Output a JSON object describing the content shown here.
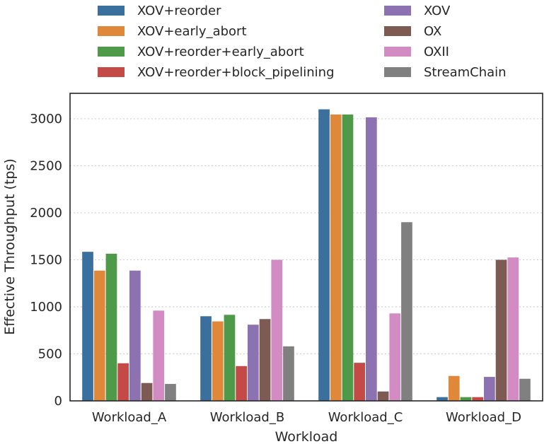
{
  "chart_data": {
    "type": "bar",
    "title": "",
    "xlabel": "Workload",
    "ylabel": "Effective Throughput (tps)",
    "ylim": [
      0,
      3270
    ],
    "yticks": [
      0,
      500,
      1000,
      1500,
      2000,
      2500,
      3000
    ],
    "grid": "horizontal dotted",
    "legend_position": "top",
    "categories": [
      "Workload_A",
      "Workload_B",
      "Workload_C",
      "Workload_D"
    ],
    "series": [
      {
        "name": "XOV+reorder",
        "color": "#3a6f9e",
        "values": [
          1585,
          900,
          3100,
          40
        ]
      },
      {
        "name": "XOV+early_abort",
        "color": "#e0883a",
        "values": [
          1385,
          845,
          3045,
          265
        ]
      },
      {
        "name": "XOV+reorder+early_abort",
        "color": "#4e9a48",
        "values": [
          1565,
          915,
          3045,
          40
        ]
      },
      {
        "name": "XOV+reorder+block_pipelining",
        "color": "#c44a48",
        "values": [
          400,
          370,
          405,
          40
        ]
      },
      {
        "name": "XOV",
        "color": "#8c72b0",
        "values": [
          1385,
          810,
          3015,
          255
        ]
      },
      {
        "name": "OX",
        "color": "#7e5b52",
        "values": [
          190,
          870,
          100,
          1500
        ]
      },
      {
        "name": "OXII",
        "color": "#d38cc3",
        "values": [
          960,
          1500,
          930,
          1525
        ]
      },
      {
        "name": "StreamChain",
        "color": "#808080",
        "values": [
          180,
          580,
          1900,
          235
        ]
      }
    ]
  }
}
